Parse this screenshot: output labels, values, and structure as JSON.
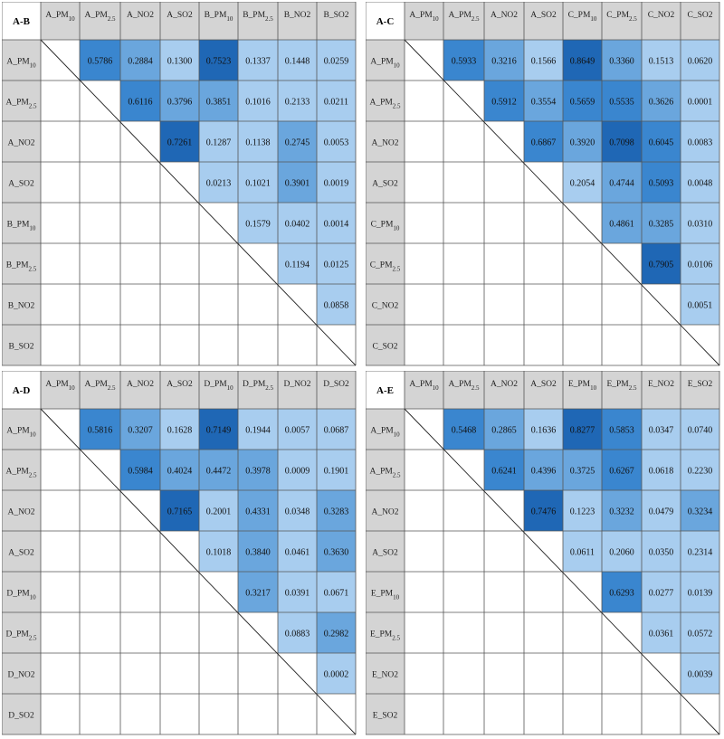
{
  "chart_data": [
    {
      "type": "heatmap",
      "title": "A-B",
      "labels": [
        "A_PM10",
        "A_PM2.5",
        "A_NO2",
        "A_SO2",
        "B_PM10",
        "B_PM2.5",
        "B_NO2",
        "B_SO2"
      ],
      "values": [
        [
          0.5786,
          0.2884,
          0.13,
          0.7523,
          0.1337,
          0.1448,
          0.0259
        ],
        [
          0.6116,
          0.3796,
          0.3851,
          0.1016,
          0.2133,
          0.0211
        ],
        [
          0.7261,
          0.1287,
          0.1138,
          0.2745,
          0.0053
        ],
        [
          0.0213,
          0.1021,
          0.3901,
          0.0019
        ],
        [
          0.1579,
          0.0402,
          0.0014
        ],
        [
          0.1194,
          0.0125
        ],
        [
          0.0858
        ]
      ]
    },
    {
      "type": "heatmap",
      "title": "A-C",
      "labels": [
        "A_PM10",
        "A_PM2.5",
        "A_NO2",
        "A_SO2",
        "C_PM10",
        "C_PM2.5",
        "C_NO2",
        "C_SO2"
      ],
      "values": [
        [
          0.5933,
          0.3216,
          0.1566,
          0.8649,
          0.336,
          0.1513,
          0.062
        ],
        [
          0.5912,
          0.3554,
          0.5659,
          0.5535,
          0.3626,
          0.0001
        ],
        [
          0.6867,
          0.392,
          0.7098,
          0.6045,
          0.0083
        ],
        [
          0.2054,
          0.4744,
          0.5093,
          0.0048
        ],
        [
          0.4861,
          0.3285,
          0.031
        ],
        [
          0.7905,
          0.0106
        ],
        [
          0.0051
        ]
      ]
    },
    {
      "type": "heatmap",
      "title": "A-D",
      "labels": [
        "A_PM10",
        "A_PM2.5",
        "A_NO2",
        "A_SO2",
        "D_PM10",
        "D_PM2.5",
        "D_NO2",
        "D_SO2"
      ],
      "values": [
        [
          0.5816,
          0.3207,
          0.1628,
          0.7149,
          0.1944,
          0.0057,
          0.0687
        ],
        [
          0.5984,
          0.4024,
          0.4472,
          0.3978,
          0.0009,
          0.1901
        ],
        [
          0.7165,
          0.2001,
          0.4331,
          0.0348,
          0.3283
        ],
        [
          0.1018,
          0.384,
          0.0461,
          0.363
        ],
        [
          0.3217,
          0.0391,
          0.0671
        ],
        [
          0.0883,
          0.2982
        ],
        [
          0.0002
        ]
      ]
    },
    {
      "type": "heatmap",
      "title": "A-E",
      "labels": [
        "A_PM10",
        "A_PM2.5",
        "A_NO2",
        "A_SO2",
        "E_PM10",
        "E_PM2.5",
        "E_NO2",
        "E_SO2"
      ],
      "values": [
        [
          0.5468,
          0.2865,
          0.1636,
          0.8277,
          0.5853,
          0.0347,
          0.074
        ],
        [
          0.6241,
          0.4396,
          0.3725,
          0.6267,
          0.0618,
          0.223
        ],
        [
          0.7476,
          0.1223,
          0.3232,
          0.0479,
          0.3234
        ],
        [
          0.0611,
          0.206,
          0.035,
          0.2314
        ],
        [
          0.6293,
          0.0277,
          0.0139
        ],
        [
          0.0361,
          0.0572
        ],
        [
          0.0039
        ]
      ]
    }
  ]
}
